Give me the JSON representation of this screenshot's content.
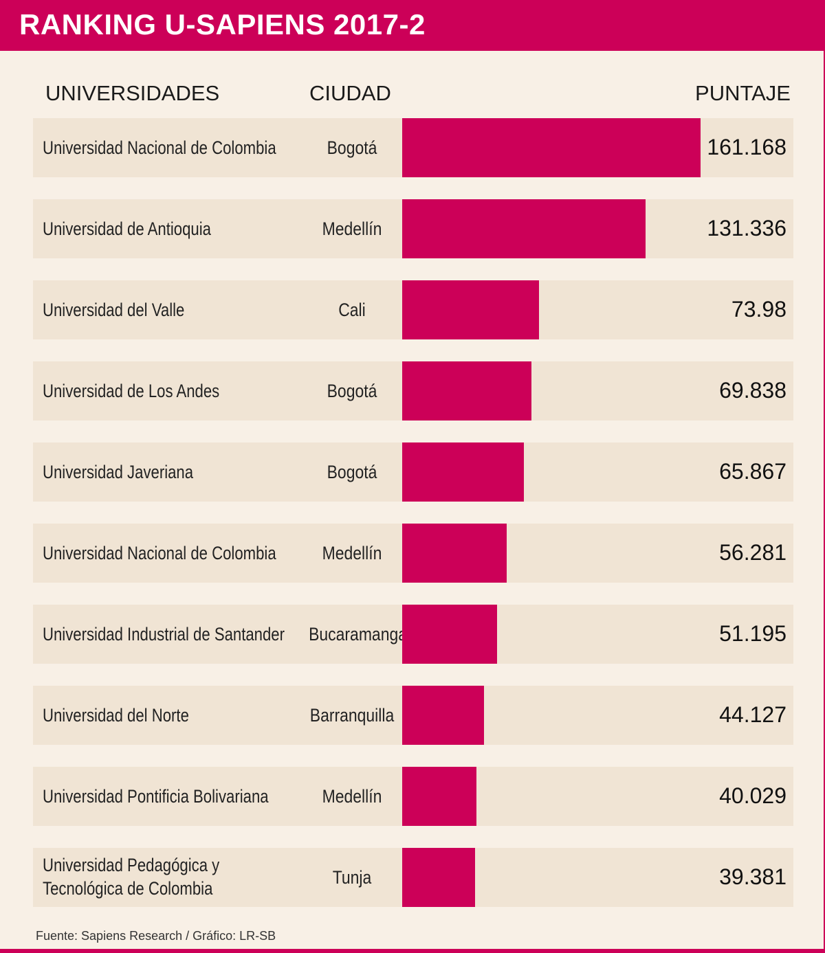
{
  "header": {
    "title": "RANKING U-SAPIENS 2017-2"
  },
  "columns": {
    "university": "UNIVERSIDADES",
    "city": "CIUDAD",
    "score": "PUNTAJE"
  },
  "colors": {
    "accent": "#cc0058",
    "row_bg": "#f0e4d4",
    "page_bg": "#f8f0e6"
  },
  "chart_data": {
    "type": "bar",
    "orientation": "horizontal",
    "title": "RANKING U-SAPIENS 2017-2",
    "categories": [
      "Universidad Nacional de Colombia",
      "Universidad de Antioquia",
      "Universidad del Valle",
      "Universidad de Los Andes",
      "Universidad Javeriana",
      "Universidad Nacional de Colombia",
      "Universidad Industrial de Santander",
      "Universidad del Norte",
      "Universidad Pontificia Bolivariana",
      "Universidad Pedagógica y Tecnológica de Colombia"
    ],
    "cities": [
      "Bogotá",
      "Medellín",
      "Cali",
      "Bogotá",
      "Bogotá",
      "Medellín",
      "Bucaramanga",
      "Barranquilla",
      "Medellín",
      "Tunja"
    ],
    "values": [
      161.168,
      131.336,
      73.98,
      69.838,
      65.867,
      56.281,
      51.195,
      44.127,
      40.029,
      39.381
    ],
    "labels": [
      "161.168",
      "131.336",
      "73.98",
      "69.838",
      "65.867",
      "56.281",
      "51.195",
      "44.127",
      "40.029",
      "39.381"
    ],
    "xlim": [
      0,
      161.168
    ]
  },
  "source": "Fuente: Sapiens Research / Gráfico: LR-SB"
}
